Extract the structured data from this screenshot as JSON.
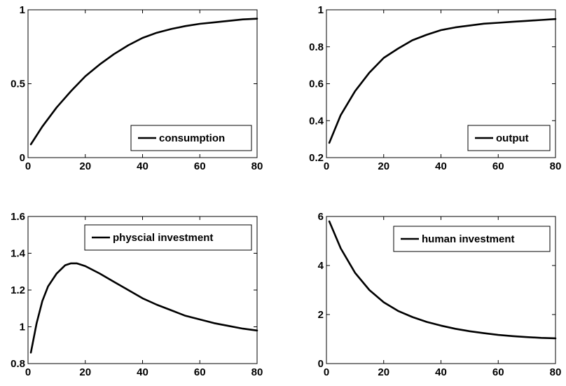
{
  "chart_data": [
    {
      "type": "line",
      "legend_placement": "bottom-right",
      "xlim": [
        0,
        80
      ],
      "ylim": [
        0,
        1
      ],
      "x_ticks": [
        0,
        20,
        40,
        60,
        80
      ],
      "y_ticks": [
        0,
        0.5,
        1
      ],
      "x_tick_labels": [
        "0",
        "20",
        "40",
        "60",
        "80"
      ],
      "y_tick_labels": [
        "0",
        "0.5",
        "1"
      ],
      "grid": false,
      "series": [
        {
          "name": "consumption",
          "x": [
            1,
            5,
            10,
            15,
            20,
            25,
            30,
            35,
            40,
            45,
            50,
            55,
            60,
            65,
            70,
            75,
            80
          ],
          "y": [
            0.09,
            0.21,
            0.34,
            0.45,
            0.55,
            0.63,
            0.7,
            0.76,
            0.81,
            0.845,
            0.87,
            0.89,
            0.905,
            0.915,
            0.925,
            0.935,
            0.94
          ]
        }
      ]
    },
    {
      "type": "line",
      "legend_placement": "bottom-right",
      "xlim": [
        0,
        80
      ],
      "ylim": [
        0.2,
        1
      ],
      "x_ticks": [
        0,
        20,
        40,
        60,
        80
      ],
      "y_ticks": [
        0.2,
        0.4,
        0.6,
        0.8,
        1
      ],
      "x_tick_labels": [
        "0",
        "20",
        "40",
        "60",
        "80"
      ],
      "y_tick_labels": [
        "0.2",
        "0.4",
        "0.6",
        "0.8",
        "1"
      ],
      "grid": false,
      "series": [
        {
          "name": "output",
          "x": [
            1,
            5,
            10,
            15,
            20,
            25,
            30,
            35,
            40,
            45,
            50,
            55,
            60,
            65,
            70,
            75,
            80
          ],
          "y": [
            0.28,
            0.43,
            0.56,
            0.66,
            0.74,
            0.79,
            0.835,
            0.865,
            0.89,
            0.905,
            0.915,
            0.925,
            0.93,
            0.935,
            0.94,
            0.945,
            0.95
          ]
        }
      ]
    },
    {
      "type": "line",
      "legend_placement": "top-right",
      "xlim": [
        0,
        80
      ],
      "ylim": [
        0.8,
        1.6
      ],
      "x_ticks": [
        0,
        20,
        40,
        60,
        80
      ],
      "y_ticks": [
        0.8,
        1,
        1.2,
        1.4,
        1.6
      ],
      "x_tick_labels": [
        "0",
        "20",
        "40",
        "60",
        "80"
      ],
      "y_tick_labels": [
        "0.8",
        "1",
        "1.2",
        "1.4",
        "1.6"
      ],
      "grid": false,
      "series": [
        {
          "name": "physcial investment",
          "x": [
            1,
            3,
            5,
            7,
            10,
            13,
            15,
            17,
            20,
            25,
            30,
            35,
            40,
            45,
            50,
            55,
            60,
            65,
            70,
            75,
            80
          ],
          "y": [
            0.86,
            1.02,
            1.14,
            1.22,
            1.29,
            1.335,
            1.345,
            1.345,
            1.33,
            1.29,
            1.245,
            1.2,
            1.155,
            1.12,
            1.09,
            1.06,
            1.04,
            1.02,
            1.005,
            0.99,
            0.98
          ]
        }
      ]
    },
    {
      "type": "line",
      "legend_placement": "top-right",
      "xlim": [
        0,
        80
      ],
      "ylim": [
        0,
        6
      ],
      "x_ticks": [
        0,
        20,
        40,
        60,
        80
      ],
      "y_ticks": [
        0,
        2,
        4,
        6
      ],
      "x_tick_labels": [
        "0",
        "20",
        "40",
        "60",
        "80"
      ],
      "y_tick_labels": [
        "0",
        "2",
        "4",
        "6"
      ],
      "grid": false,
      "series": [
        {
          "name": "human investment",
          "x": [
            1,
            5,
            10,
            15,
            20,
            25,
            30,
            35,
            40,
            45,
            50,
            55,
            60,
            65,
            70,
            75,
            80
          ],
          "y": [
            5.8,
            4.7,
            3.7,
            3.0,
            2.5,
            2.15,
            1.9,
            1.7,
            1.55,
            1.42,
            1.32,
            1.24,
            1.17,
            1.12,
            1.08,
            1.05,
            1.03
          ]
        }
      ]
    }
  ]
}
